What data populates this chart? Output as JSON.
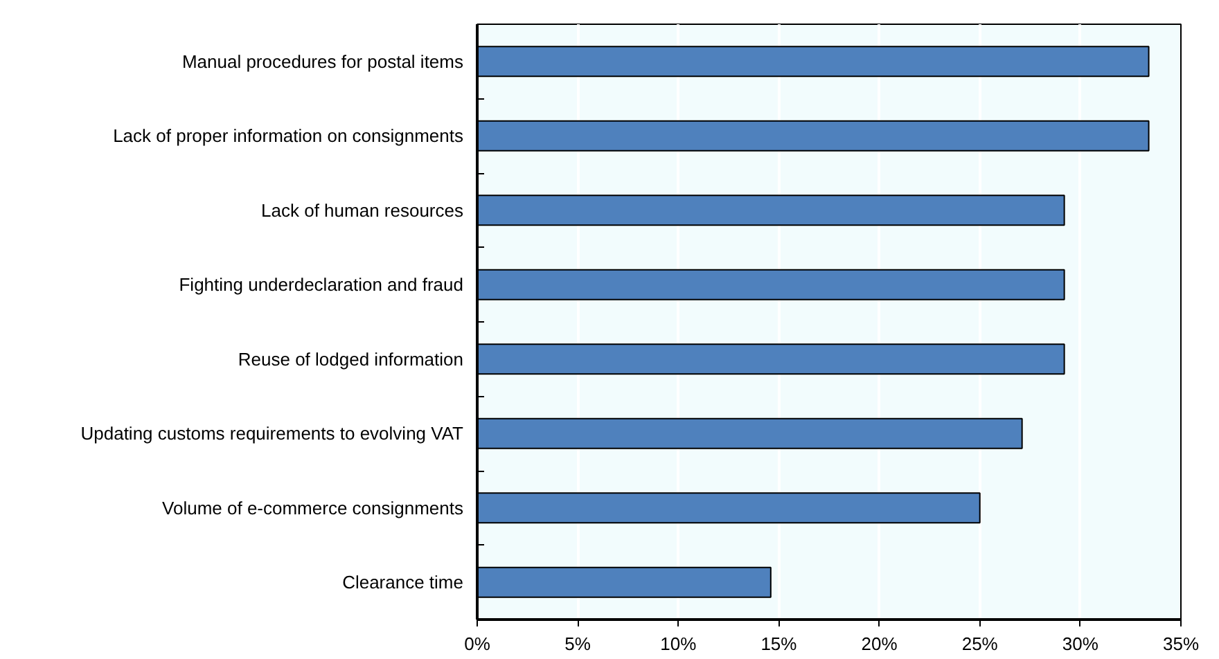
{
  "chart_data": {
    "type": "bar",
    "orientation": "horizontal",
    "categories": [
      "Manual procedures for postal items",
      "Lack of proper information on consignments",
      "Lack of human resources",
      "Fighting underdeclaration and fraud",
      "Reuse of lodged information",
      "Updating customs requirements to evolving VAT",
      "Volume of e-commerce consignments",
      "Clearance time"
    ],
    "values": [
      33.4,
      33.4,
      29.2,
      29.2,
      29.2,
      27.1,
      25.0,
      14.6
    ],
    "color": "#4f81bd",
    "xlim": [
      0,
      35
    ],
    "xticks": [
      {
        "value": 0,
        "label": "0%"
      },
      {
        "value": 5,
        "label": "5%"
      },
      {
        "value": 10,
        "label": "10%"
      },
      {
        "value": 15,
        "label": "15%"
      },
      {
        "value": 20,
        "label": "20%"
      },
      {
        "value": 25,
        "label": "25%"
      },
      {
        "value": 30,
        "label": "30%"
      },
      {
        "value": 35,
        "label": "35%"
      }
    ],
    "grid": "x"
  }
}
